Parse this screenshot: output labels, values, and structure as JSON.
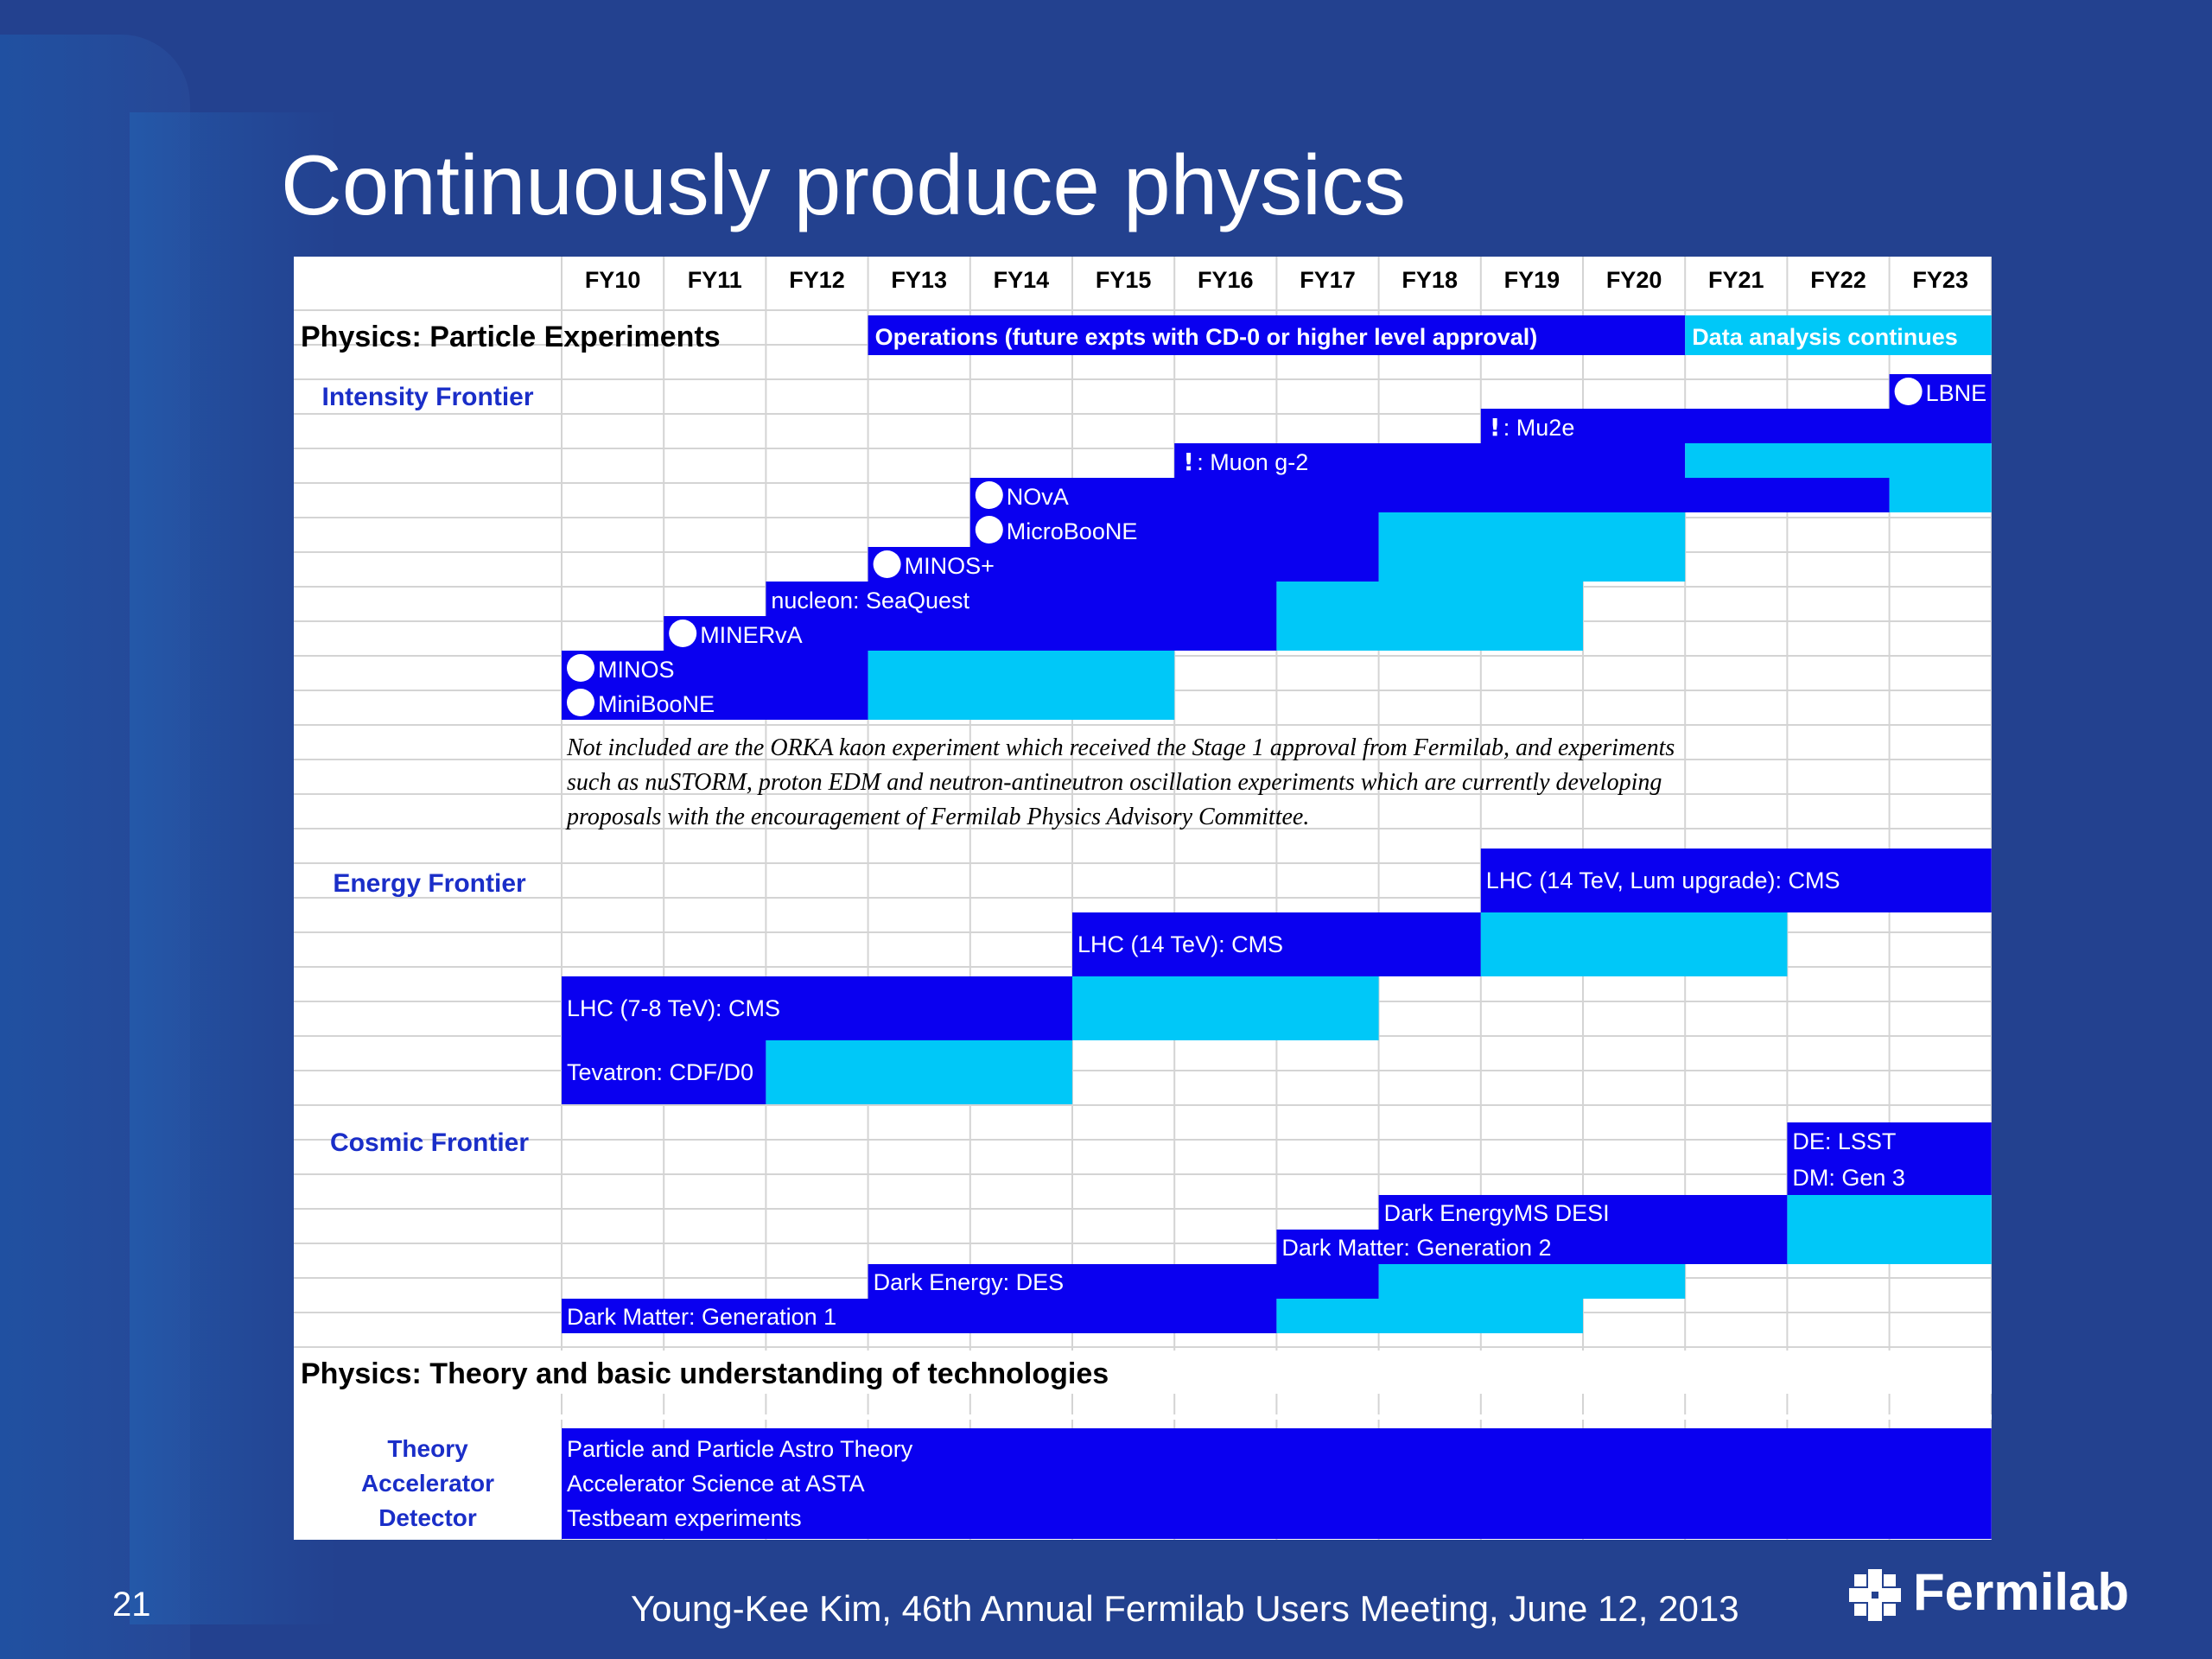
{
  "slide": {
    "title": "Continuously produce physics",
    "page_number": "21",
    "footer": "Young-Kee Kim, 46th Annual Fermilab Users Meeting, June 12, 2013",
    "logo_text": "Fermilab"
  },
  "colors": {
    "background": "#23418f",
    "operations": "#0a00f0",
    "analysis": "#00c8f8",
    "label_blue": "#1a2ec8",
    "grid": "#d4d4d4"
  },
  "icons": [
    "fermilab-logo-icon",
    "circle-icon",
    "exclamation-icon"
  ],
  "table": {
    "years": [
      "FY10",
      "FY11",
      "FY12",
      "FY13",
      "FY14",
      "FY15",
      "FY16",
      "FY17",
      "FY18",
      "FY19",
      "FY20",
      "FY21",
      "FY22",
      "FY23"
    ],
    "section_particle": "Physics: Particle Experiments",
    "legend_operations": "Operations (future expts with CD-0 or higher level approval)",
    "legend_analysis": "Data analysis continues",
    "frontier_intensity": "Intensity Frontier",
    "frontier_energy": "Energy Frontier",
    "frontier_cosmic": "Cosmic Frontier",
    "section_theory": "Physics: Theory and basic understanding of technologies",
    "note": [
      "Not included are the ORKA kaon experiment which received the Stage 1 approval from Fermilab, and experiments",
      "such as nuSTORM, proton EDM and neutron-antineutron oscillation experiments which are currently developing",
      "proposals with the encouragement of Fermilab Physics Advisory Committee."
    ],
    "theory_rows": [
      {
        "category": "Theory",
        "label": "Particle and Particle Astro Theory"
      },
      {
        "category": "Accelerator",
        "label": "Accelerator Science at ASTA"
      },
      {
        "category": "Detector",
        "label": "Testbeam experiments"
      }
    ],
    "intensity": [
      {
        "label": "LBNE",
        "marker": "circle",
        "ops": [
          13,
          14
        ],
        "ana": null
      },
      {
        "label": ": Mu2e",
        "marker": "exclaim",
        "ops": [
          9,
          14
        ],
        "ana": null
      },
      {
        "label": ": Muon g-2",
        "marker": "exclaim",
        "ops": [
          6,
          11
        ],
        "ana": [
          11,
          14
        ]
      },
      {
        "label": "NOvA",
        "marker": "circle",
        "ops": [
          4,
          13
        ],
        "ana": [
          13,
          14
        ]
      },
      {
        "label": "MicroBooNE",
        "marker": "circle",
        "ops": [
          4,
          8
        ],
        "ana": [
          8,
          11
        ]
      },
      {
        "label": "MINOS+",
        "marker": "circle",
        "ops": [
          3,
          8
        ],
        "ana": [
          8,
          11
        ]
      },
      {
        "label": "nucleon: SeaQuest",
        "marker": "none",
        "ops": [
          2,
          7
        ],
        "ana": [
          7,
          10
        ]
      },
      {
        "label": "MINERvA",
        "marker": "circle",
        "ops": [
          1,
          7
        ],
        "ana": [
          7,
          10
        ]
      },
      {
        "label": "MINOS",
        "marker": "circle",
        "ops": [
          0,
          3
        ],
        "ana": [
          3,
          6
        ]
      },
      {
        "label": "MiniBooNE",
        "marker": "circle",
        "ops": [
          0,
          3
        ],
        "ana": [
          3,
          6
        ]
      }
    ],
    "energy": [
      {
        "label": "LHC (14 TeV, Lum upgrade): CMS",
        "ops": [
          9,
          14
        ],
        "ana": null
      },
      {
        "label": "LHC (14 TeV): CMS",
        "ops": [
          5,
          9
        ],
        "ana": [
          9,
          12
        ]
      },
      {
        "label": "LHC (7-8 TeV): CMS",
        "ops": [
          0,
          5
        ],
        "ana": [
          5,
          8
        ]
      },
      {
        "label": "Tevatron: CDF/D0",
        "ops": [
          0,
          2
        ],
        "ana": [
          2,
          5
        ]
      }
    ],
    "cosmic": [
      {
        "label": "DE: LSST",
        "ops": [
          12,
          14
        ],
        "ana": null
      },
      {
        "label": "DM: Gen 3",
        "ops": [
          12,
          14
        ],
        "ana": null
      },
      {
        "label": "Dark EnergyMS DESI",
        "ops": [
          8,
          12
        ],
        "ana": [
          12,
          14
        ]
      },
      {
        "label": "Dark Matter: Generation 2",
        "ops": [
          7,
          12
        ],
        "ana": [
          12,
          14
        ]
      },
      {
        "label": "Dark Energy: DES",
        "ops": [
          3,
          8
        ],
        "ana": [
          8,
          11
        ]
      },
      {
        "label": "Dark Matter: Generation 1",
        "ops": [
          0,
          7
        ],
        "ana": [
          7,
          10
        ]
      }
    ]
  }
}
